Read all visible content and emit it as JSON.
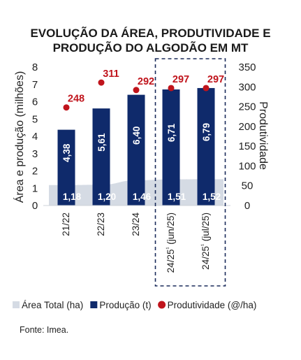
{
  "chart_data": {
    "type": "bar",
    "title_lines": [
      "EVOLUÇÃO DA ÁREA, PRODUTIVIDADE E",
      "PRODUÇÃO DO ALGODÃO EM MT"
    ],
    "categories": [
      "21/22",
      "22/23",
      "23/24",
      "24/25¹ (jun/25)",
      "24/25¹ (jul/25)"
    ],
    "series": [
      {
        "name": "Área Total (ha)",
        "type": "area",
        "axis": "left",
        "values": [
          1.18,
          1.2,
          1.46,
          1.51,
          1.52
        ],
        "labels": [
          "1,18",
          "1,20",
          "1,46",
          "1,51",
          "1,52"
        ],
        "color": "#d5dbe4"
      },
      {
        "name": "Produção (t)",
        "type": "bar",
        "axis": "left",
        "values": [
          4.38,
          5.61,
          6.4,
          6.71,
          6.79
        ],
        "labels": [
          "4,38",
          "5,61",
          "6,40",
          "6,71",
          "6,79"
        ],
        "color": "#0f2a6b"
      },
      {
        "name": "Produtividade (@/ha)",
        "type": "scatter",
        "axis": "right",
        "values": [
          248,
          311,
          292,
          297,
          297
        ],
        "labels": [
          "248",
          "311",
          "292",
          "297",
          "297"
        ],
        "color": "#c0141c"
      }
    ],
    "ylabel_left": "Área e produção (milhões)",
    "ylabel_right": "Produtividade",
    "ylim_left": [
      0,
      8
    ],
    "ylim_right": [
      0,
      350
    ],
    "yticks_left": [
      "0",
      "1",
      "2",
      "3",
      "4",
      "5",
      "6",
      "7",
      "8"
    ],
    "yticks_right": [
      "0",
      "50",
      "100",
      "150",
      "200",
      "250",
      "300",
      "350"
    ],
    "legend_position": "bottom",
    "highlighted_categories": [
      3,
      4
    ],
    "grid": false
  },
  "source": "Fonte: Imea."
}
